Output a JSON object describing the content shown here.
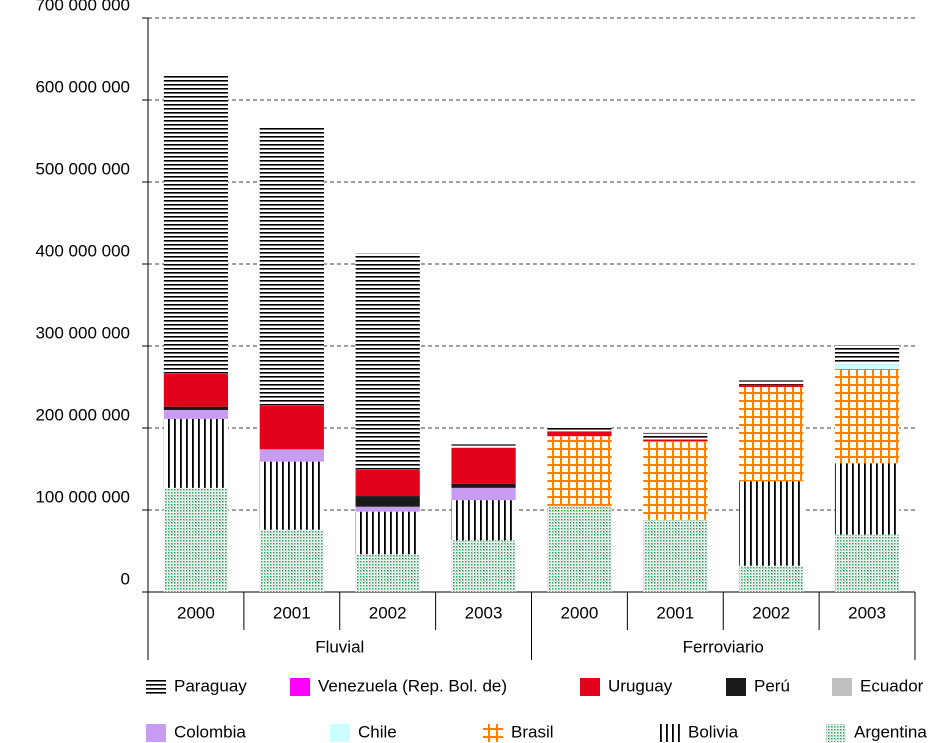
{
  "chart_data": {
    "type": "stacked_bar",
    "groups": [
      {
        "name": "Fluvial",
        "categories": [
          "2000",
          "2001",
          "2002",
          "2003"
        ]
      },
      {
        "name": "Ferroviario",
        "categories": [
          "2000",
          "2001",
          "2002",
          "2003"
        ]
      }
    ],
    "series": [
      {
        "name": "Paraguay",
        "color": "#000000",
        "pattern": "hlines",
        "values": [
          366000000,
          339000000,
          264000000,
          4000000,
          6000000,
          8000000,
          5000000,
          23000000
        ]
      },
      {
        "name": "Venezuela (Rep. Bol. de)",
        "color": "#ff00ff",
        "pattern": "solid",
        "values": [
          0,
          0,
          0,
          0,
          0,
          0,
          0,
          0
        ]
      },
      {
        "name": "Uruguay",
        "color": "#e2001a",
        "pattern": "solid",
        "values": [
          40000000,
          53000000,
          32000000,
          44000000,
          6000000,
          2000000,
          3000000,
          0
        ]
      },
      {
        "name": "Perú",
        "color": "#1a1a1a",
        "pattern": "solid",
        "values": [
          4000000,
          0,
          13000000,
          5000000,
          0,
          0,
          0,
          0
        ]
      },
      {
        "name": "Ecuador",
        "color": "#c0c0c0",
        "pattern": "solid",
        "values": [
          0,
          0,
          0,
          0,
          0,
          0,
          0,
          0
        ]
      },
      {
        "name": "Colombia",
        "color": "#c89cf0",
        "pattern": "solid",
        "values": [
          11000000,
          15000000,
          6000000,
          15000000,
          0,
          0,
          0,
          0
        ]
      },
      {
        "name": "Chile",
        "color": "#ccffff",
        "pattern": "solid",
        "values": [
          0,
          0,
          0,
          0,
          0,
          0,
          0,
          6000000
        ]
      },
      {
        "name": "Brasil",
        "color": "#ff8000",
        "pattern": "grid",
        "values": [
          0,
          0,
          0,
          0,
          85000000,
          96000000,
          115000000,
          115000000
        ]
      },
      {
        "name": "Bolivia",
        "color": "#000000",
        "pattern": "vlines",
        "values": [
          84000000,
          83000000,
          52000000,
          49000000,
          0,
          0,
          103000000,
          87000000
        ]
      },
      {
        "name": "Argentina",
        "color": "#2e9e5e",
        "pattern": "dots",
        "values": [
          127000000,
          76000000,
          46000000,
          63000000,
          105000000,
          88000000,
          32000000,
          70000000
        ]
      }
    ],
    "ylim": [
      0,
      700000000
    ],
    "yticks": [
      0,
      {
        "value": 100000000,
        "label": "100 000 000"
      },
      {
        "value": 200000000,
        "label": "200 000 000"
      },
      {
        "value": 300000000,
        "label": "300 000 000"
      },
      {
        "value": 400000000,
        "label": "400 000 000"
      },
      {
        "value": 500000000,
        "label": "500 000 000"
      },
      {
        "value": 600000000,
        "label": "600 000 000"
      },
      {
        "value": 700000000,
        "label": "700 000 000"
      }
    ],
    "grid": true
  }
}
